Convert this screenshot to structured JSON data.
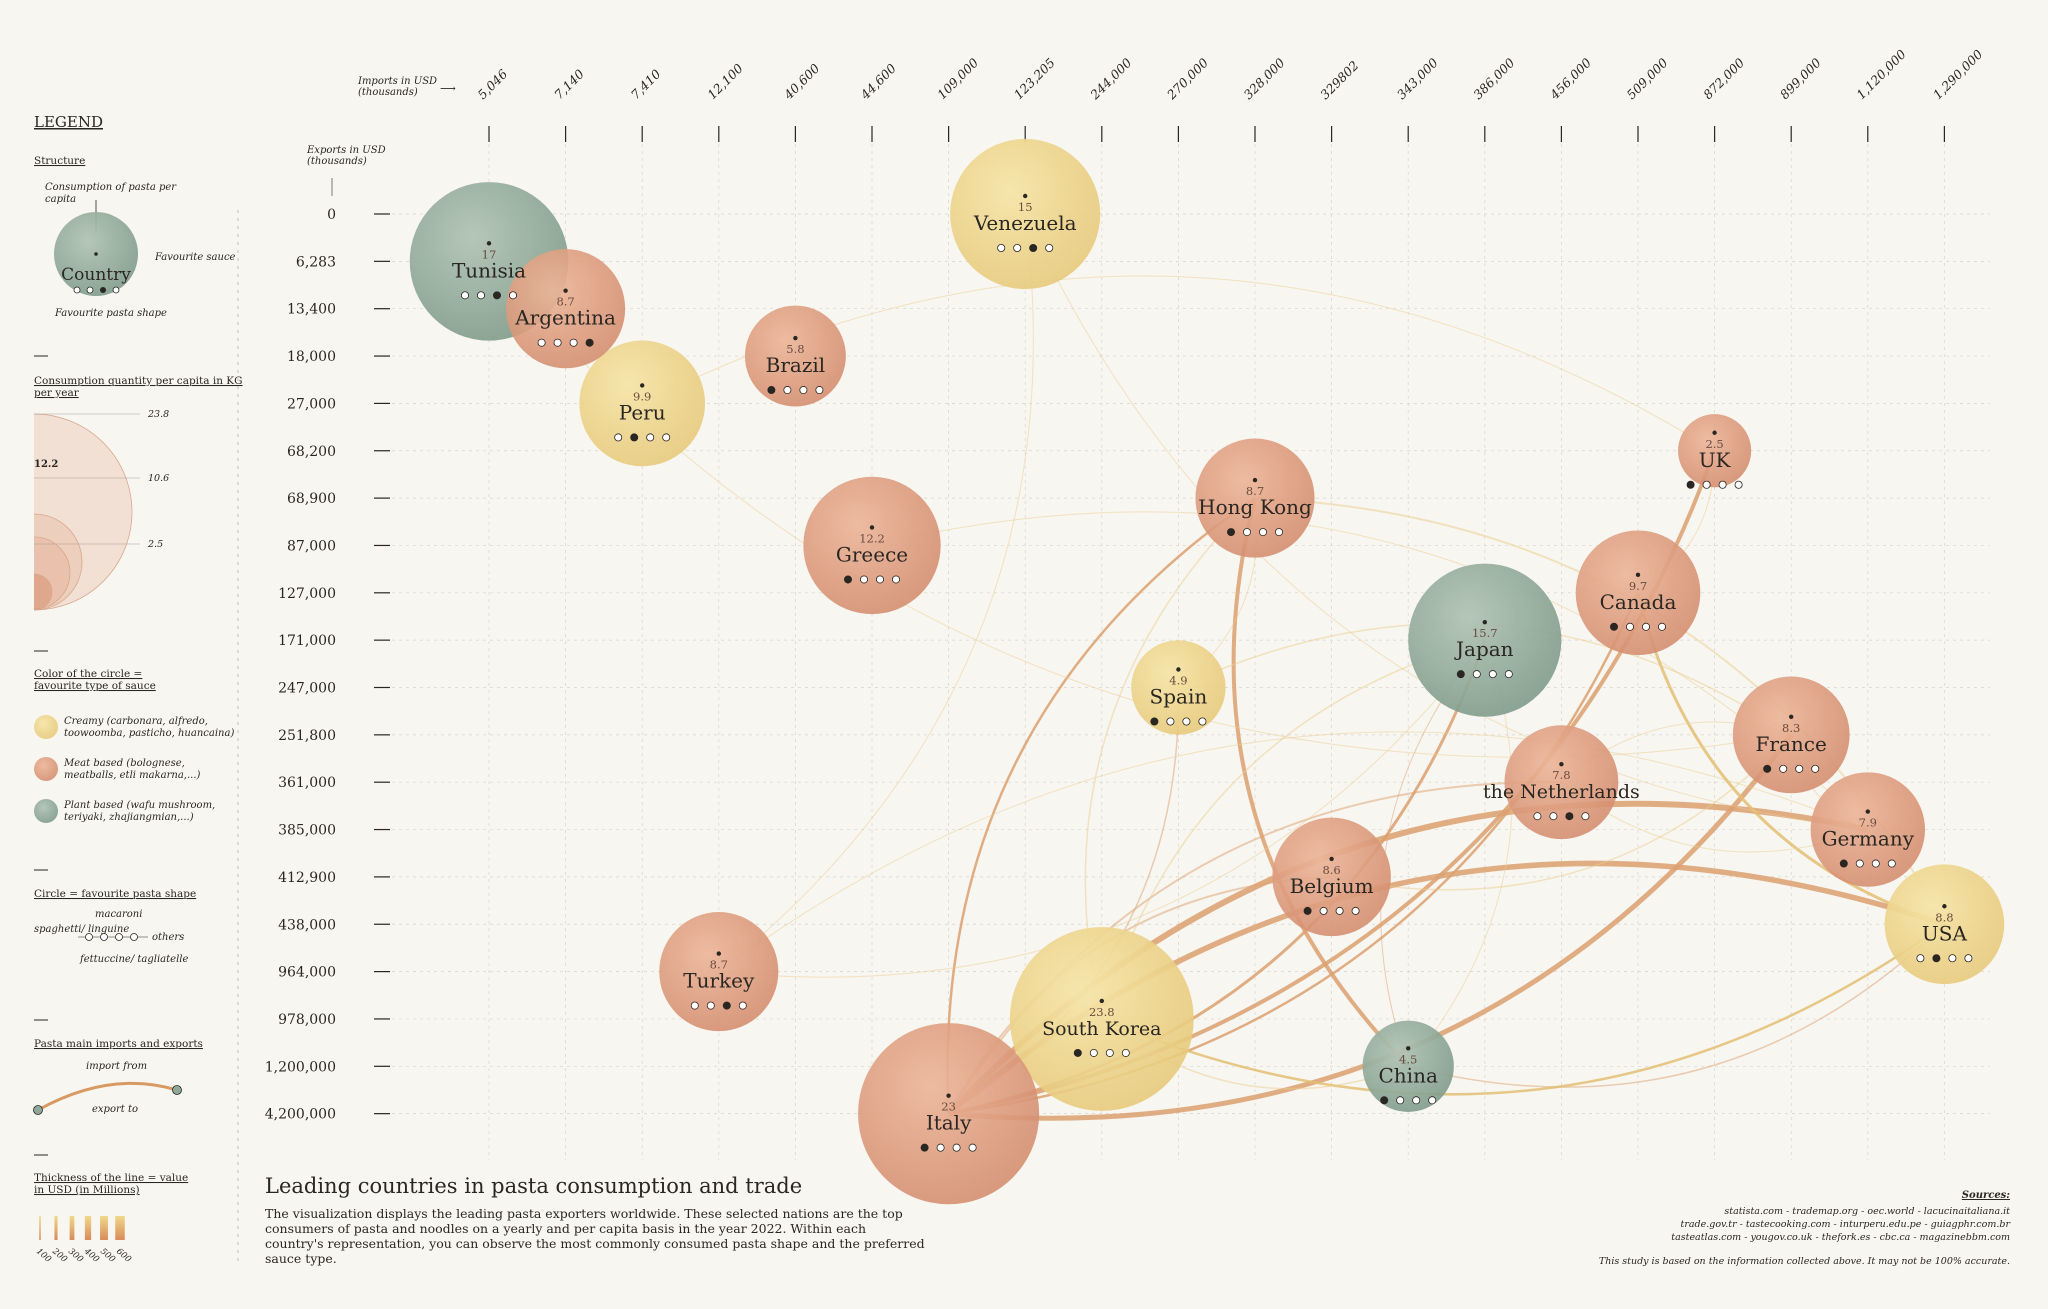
{
  "legend": {
    "title": "LEGEND",
    "structure_title": "Structure",
    "structure_top": "Consumption of pasta per capita",
    "structure_country": "Country",
    "structure_sauce": "Favourite sauce",
    "structure_shape": "Favourite pasta shape",
    "size_title": "Consumption quantity per capita in KG per year",
    "size_values": [
      "23.8",
      "12.2",
      "10.6",
      "2.5"
    ],
    "color_title": "Color of the circle = favourite type of sauce",
    "color_items": [
      {
        "label": "Creamy (carbonara, alfredo, toowoomba, pasticho, huancaina)",
        "color": "#ecd48a"
      },
      {
        "label": "Meat based (bolognese, meatballs, etli makarna,...)",
        "color": "#dc9a7c"
      },
      {
        "label": "Plant based (wafu mushroom, teriyaki, zhajiangmian,...)",
        "color": "#8fa897"
      }
    ],
    "shape_title": "Circle = favourite pasta shape",
    "shape_labels": [
      "spaghetti/ linguine",
      "macaroni",
      "fettuccine/ tagliatelle",
      "others"
    ],
    "trade_title": "Pasta main imports and exports",
    "trade_import": "import from",
    "trade_export": "export to",
    "thickness_title": "Thickness of the line = value in USD (in Millions)",
    "thickness_values": [
      "100",
      "200",
      "300",
      "400",
      "500",
      "600"
    ]
  },
  "axes": {
    "x_title": "Imports in USD (thousands)",
    "y_title": "Exports in USD (thousands)"
  },
  "footer": {
    "title": "Leading countries in pasta consumption and trade",
    "description": "The visualization displays the leading pasta exporters worldwide. These selected nations are the top consumers of pasta and noodles on a yearly and per capita basis in the year 2022. Within each country's representation, you can observe the most commonly consumed pasta shape and the preferred sauce type.",
    "sources_title": "Sources:",
    "sources": "statista.com - trademap.org - oec.world - lacucinaitaliana.it trade.gov.tr - tastecooking.com - inturperu.edu.pe - guiagphr.com.br tasteatlas.com - yougov.co.uk - thefork.es - cbc.ca - magazinebbm.com",
    "disclaimer": "This study is based on the information collected above. It may not be 100% accurate."
  },
  "colors": {
    "creamy": "#ecd48a",
    "meat": "#dc9a7c",
    "plant": "#8fa897",
    "background": "#f8f6f1",
    "ink": "#2a2622"
  },
  "chart_data": {
    "type": "scatter",
    "x_ticks": [
      "5,046",
      "7,140",
      "7,410",
      "12,100",
      "40,600",
      "44,600",
      "109,000",
      "123,205",
      "244,000",
      "270,000",
      "328,000",
      "329802",
      "343,000",
      "386,000",
      "456,000",
      "509,000",
      "872,000",
      "899,000",
      "1,120,000",
      "1,290,000"
    ],
    "y_ticks": [
      "0",
      "6,283",
      "13,400",
      "18,000",
      "27,000",
      "68,200",
      "68,900",
      "87,000",
      "127,000",
      "171,000",
      "247,000",
      "251,800",
      "361,000",
      "385,000",
      "412,900",
      "438,000",
      "964,000",
      "978,000",
      "1,200,000",
      "4,200,000"
    ],
    "countries": [
      {
        "name": "Tunisia",
        "value": "17",
        "imports": "5,046",
        "exports": "6,283",
        "sauce": "plant",
        "shape": 2
      },
      {
        "name": "Argentina",
        "value": "8.7",
        "imports": "7,140",
        "exports": "13,400",
        "sauce": "meat",
        "shape": 3
      },
      {
        "name": "Peru",
        "value": "9.9",
        "imports": "7,410",
        "exports": "27,000",
        "sauce": "creamy",
        "shape": 1
      },
      {
        "name": "Brazil",
        "value": "5.8",
        "imports": "40,600",
        "exports": "18,000",
        "sauce": "meat",
        "shape": 0
      },
      {
        "name": "Venezuela",
        "value": "15",
        "imports": "123,205",
        "exports": "0",
        "sauce": "creamy",
        "shape": 2
      },
      {
        "name": "Greece",
        "value": "12.2",
        "imports": "44,600",
        "exports": "87,000",
        "sauce": "meat",
        "shape": 0
      },
      {
        "name": "Hong Kong",
        "value": "8.7",
        "imports": "328,000",
        "exports": "68,900",
        "sauce": "meat",
        "shape": 0
      },
      {
        "name": "UK",
        "value": "2.5",
        "imports": "872,000",
        "exports": "68,200",
        "sauce": "meat",
        "shape": 0
      },
      {
        "name": "Canada",
        "value": "9.7",
        "imports": "509,000",
        "exports": "127,000",
        "sauce": "meat",
        "shape": 0
      },
      {
        "name": "Japan",
        "value": "15.7",
        "imports": "386,000",
        "exports": "171,000",
        "sauce": "plant",
        "shape": 0
      },
      {
        "name": "Spain",
        "value": "4.9",
        "imports": "270,000",
        "exports": "247,000",
        "sauce": "creamy",
        "shape": 0
      },
      {
        "name": "France",
        "value": "8.3",
        "imports": "899,000",
        "exports": "251,800",
        "sauce": "meat",
        "shape": 0
      },
      {
        "name": "the Netherlands",
        "value": "7.8",
        "imports": "456,000",
        "exports": "361,000",
        "sauce": "meat",
        "shape": 2
      },
      {
        "name": "Germany",
        "value": "7.9",
        "imports": "1,120,000",
        "exports": "385,000",
        "sauce": "meat",
        "shape": 0
      },
      {
        "name": "Belgium",
        "value": "8.6",
        "imports": "329802",
        "exports": "412,900",
        "sauce": "meat",
        "shape": 0
      },
      {
        "name": "USA",
        "value": "8.8",
        "imports": "1,290,000",
        "exports": "438,000",
        "sauce": "creamy",
        "shape": 1
      },
      {
        "name": "Turkey",
        "value": "8.7",
        "imports": "12,100",
        "exports": "964,000",
        "sauce": "meat",
        "shape": 2
      },
      {
        "name": "South Korea",
        "value": "23.8",
        "imports": "244,000",
        "exports": "978,000",
        "sauce": "creamy",
        "shape": 0
      },
      {
        "name": "China",
        "value": "4.5",
        "imports": "343,000",
        "exports": "1,200,000",
        "sauce": "plant",
        "shape": 0
      },
      {
        "name": "Italy",
        "value": "23",
        "imports": "109,000",
        "exports": "4,200,000",
        "sauce": "meat",
        "shape": 0
      }
    ],
    "flows": [
      {
        "from": "Italy",
        "to": "Germany",
        "value": 600
      },
      {
        "from": "Italy",
        "to": "France",
        "value": 500
      },
      {
        "from": "Italy",
        "to": "USA",
        "value": 550
      },
      {
        "from": "Italy",
        "to": "Japan",
        "value": 300
      },
      {
        "from": "Italy",
        "to": "Hong Kong",
        "value": 250
      },
      {
        "from": "Italy",
        "to": "Canada",
        "value": 250
      },
      {
        "from": "Italy",
        "to": "the Netherlands",
        "value": 200
      },
      {
        "from": "Italy",
        "to": "UK",
        "value": 400
      },
      {
        "from": "Italy",
        "to": "Belgium",
        "value": 200
      },
      {
        "from": "Italy",
        "to": "Spain",
        "value": 150
      },
      {
        "from": "China",
        "to": "Hong Kong",
        "value": 400
      },
      {
        "from": "China",
        "to": "USA",
        "value": 150
      },
      {
        "from": "China",
        "to": "Japan",
        "value": 100
      },
      {
        "from": "South Korea",
        "to": "USA",
        "value": 250
      },
      {
        "from": "South Korea",
        "to": "Japan",
        "value": 150
      },
      {
        "from": "South Korea",
        "to": "China",
        "value": 150
      },
      {
        "from": "South Korea",
        "to": "Hong Kong",
        "value": 150
      },
      {
        "from": "Turkey",
        "to": "Venezuela",
        "value": 100
      },
      {
        "from": "Turkey",
        "to": "Germany",
        "value": 100
      },
      {
        "from": "Turkey",
        "to": "Japan",
        "value": 100
      },
      {
        "from": "USA",
        "to": "Canada",
        "value": 300
      },
      {
        "from": "USA",
        "to": "Hong Kong",
        "value": 200
      },
      {
        "from": "Spain",
        "to": "France",
        "value": 150
      },
      {
        "from": "Belgium",
        "to": "France",
        "value": 150
      },
      {
        "from": "Germany",
        "to": "France",
        "value": 100
      },
      {
        "from": "Tunisia",
        "to": "France",
        "value": 100
      },
      {
        "from": "Greece",
        "to": "Germany",
        "value": 100
      },
      {
        "from": "Venezuela",
        "to": "Germany",
        "value": 100
      },
      {
        "from": "Peru",
        "to": "UK",
        "value": 100
      },
      {
        "from": "Canada",
        "to": "UK",
        "value": 100
      },
      {
        "from": "the Netherlands",
        "to": "France",
        "value": 100
      },
      {
        "from": "the Netherlands",
        "to": "Germany",
        "value": 100
      },
      {
        "from": "Japan",
        "to": "China",
        "value": 100
      },
      {
        "from": "Spain",
        "to": "Hong Kong",
        "value": 100
      }
    ]
  }
}
